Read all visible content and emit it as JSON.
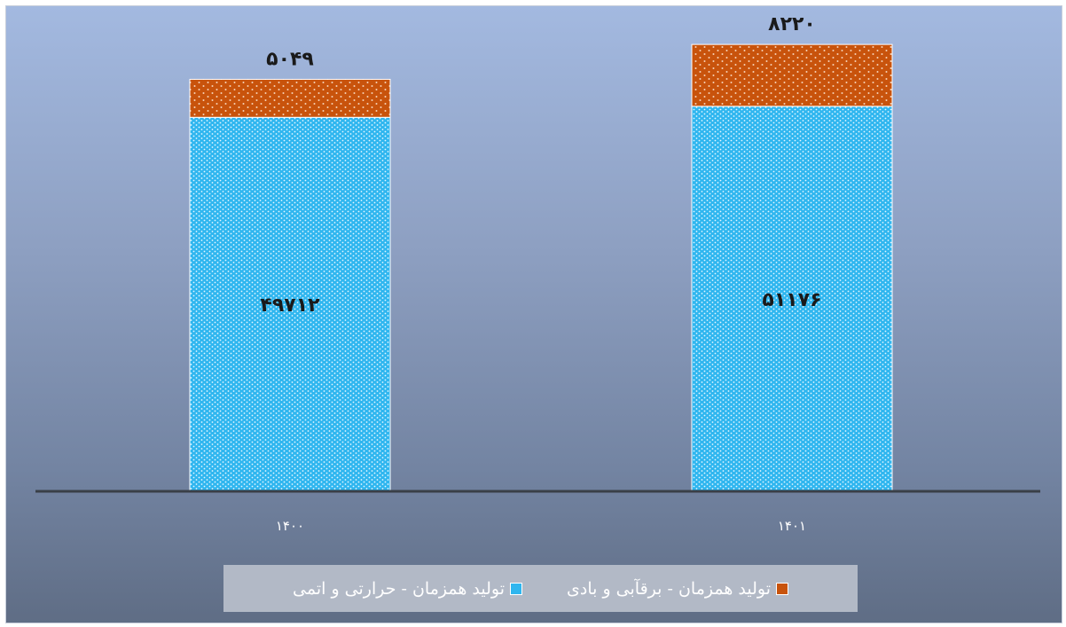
{
  "chart_data": {
    "type": "bar",
    "stacked": true,
    "categories": [
      "۱۴۰۰",
      "۱۴۰۱"
    ],
    "series": [
      {
        "name": "تولید همزمان - حرارتی و اتمی",
        "values": [
          49712,
          51176
        ],
        "labels": [
          "۴۹۷۱۲",
          "۵۱۱۷۶"
        ],
        "color": "#2fb6ef"
      },
      {
        "name": "تولید همزمان - برقآبی و بادی",
        "values": [
          5049,
          8220
        ],
        "labels": [
          "۵۰۴۹",
          "۸۲۲۰"
        ],
        "color": "#c8530c"
      }
    ],
    "ylim": [
      0,
      60000
    ],
    "grid": false,
    "legend_position": "bottom"
  }
}
